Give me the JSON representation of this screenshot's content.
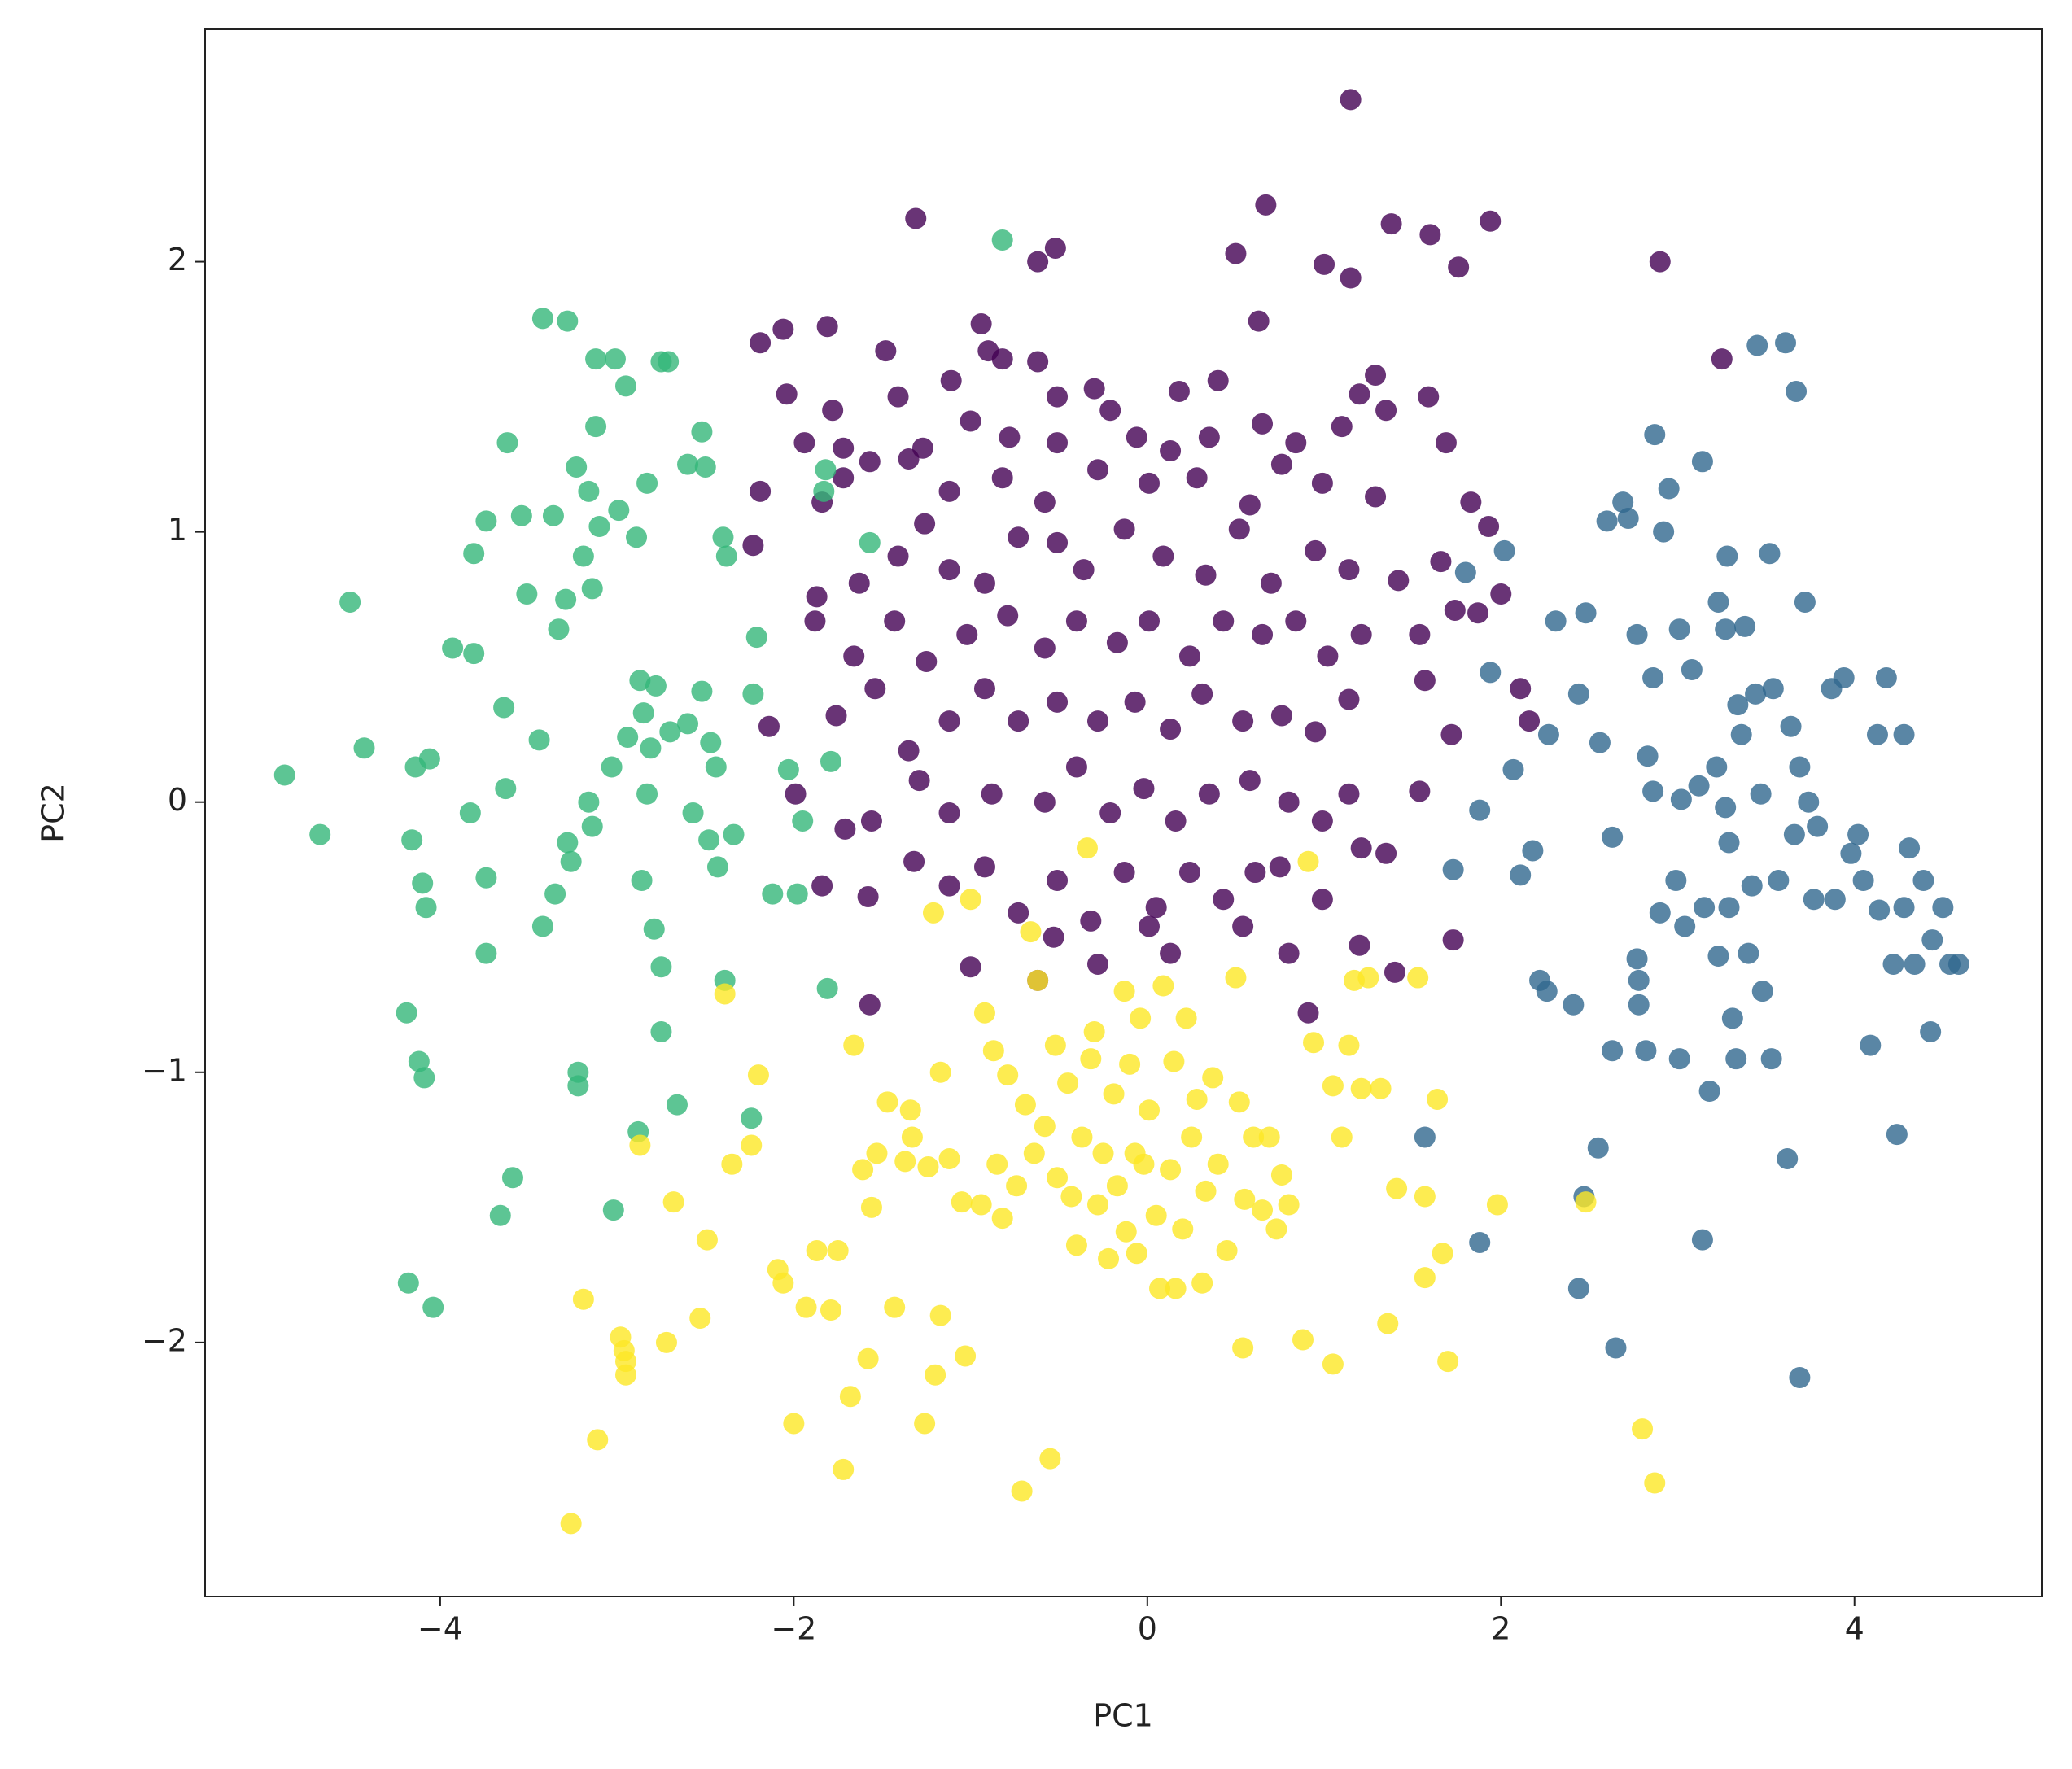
{
  "chart_data": {
    "type": "scatter",
    "xlabel": "PC1",
    "ylabel": "PC2",
    "xlim": [
      -5.33,
      5.06
    ],
    "ylim": [
      -2.94,
      2.86
    ],
    "xticks": [
      {
        "value": -4,
        "label": "−4"
      },
      {
        "value": -2,
        "label": "−2"
      },
      0,
      2,
      4
    ],
    "yticks": [
      {
        "value": -2,
        "label": "−2"
      },
      {
        "value": -1,
        "label": "−1"
      },
      0,
      1,
      2
    ],
    "grid": false,
    "opacity": 0.8,
    "series": [
      {
        "color": "#440154",
        "x": [
          1.15,
          -1.31,
          0.67,
          1.38,
          1.94,
          1.6,
          -0.62,
          -0.52,
          0.5,
          1.0,
          1.15,
          1.76,
          2.9,
          3.25,
          -2.19,
          -2.06,
          -1.81,
          -0.94,
          0.63,
          -1.48,
          -0.9,
          -0.82,
          -2.04,
          -1.78,
          -1.41,
          -1.11,
          -0.62,
          -0.51,
          -0.3,
          0.18,
          0.4,
          1.29,
          1.2,
          1.35,
          1.59,
          -1.94,
          -1.72,
          -1.57,
          -1.27,
          -1.0,
          -0.78,
          -0.51,
          -0.21,
          -0.06,
          0.13,
          0.35,
          0.65,
          0.84,
          1.1,
          1.69,
          -2.19,
          -1.84,
          -1.72,
          -1.35,
          -1.12,
          -0.82,
          -0.58,
          -0.28,
          0.01,
          0.28,
          0.58,
          0.76,
          0.99,
          1.29,
          1.83,
          -2.23,
          -1.87,
          -1.63,
          -1.41,
          -1.26,
          -1.12,
          -0.92,
          -0.73,
          -0.51,
          -0.36,
          -0.13,
          0.09,
          0.33,
          0.52,
          0.7,
          0.95,
          1.14,
          1.42,
          1.66,
          1.93,
          2.0,
          1.87,
          -1.88,
          -1.66,
          -1.43,
          -1.25,
          -1.02,
          -0.79,
          -0.58,
          -0.4,
          -0.17,
          0.01,
          0.24,
          0.43,
          0.65,
          0.84,
          1.02,
          1.21,
          1.54,
          1.74,
          -2.14,
          -1.76,
          -1.54,
          -1.35,
          -1.12,
          -0.92,
          -0.73,
          -0.51,
          -0.28,
          -0.07,
          0.13,
          0.31,
          0.54,
          0.76,
          0.95,
          1.14,
          1.57,
          1.72,
          2.11,
          2.16,
          -1.99,
          -1.71,
          -1.56,
          -1.29,
          -1.12,
          -0.88,
          -0.58,
          -0.4,
          -0.21,
          -0.02,
          0.16,
          0.35,
          0.58,
          0.8,
          0.99,
          1.14,
          1.54,
          -1.84,
          -1.58,
          -1.32,
          -1.12,
          -0.92,
          -0.73,
          -0.51,
          -0.32,
          -0.13,
          0.05,
          0.24,
          0.43,
          0.61,
          0.75,
          0.99,
          1.21,
          1.35,
          -1.57,
          -1.0,
          -0.53,
          -0.28,
          0.13,
          0.54,
          0.8,
          0.91,
          1.2,
          1.4,
          1.73,
          -0.62,
          0.01
        ],
        "y": [
          2.6,
          2.16,
          2.21,
          2.14,
          2.15,
          2.1,
          2.0,
          2.05,
          2.03,
          1.99,
          1.94,
          1.98,
          2.0,
          1.64,
          1.7,
          1.75,
          1.76,
          1.77,
          1.78,
          1.67,
          1.67,
          1.64,
          1.51,
          1.45,
          1.5,
          1.56,
          1.63,
          1.5,
          1.53,
          1.52,
          1.56,
          1.58,
          1.51,
          1.45,
          1.5,
          1.33,
          1.31,
          1.26,
          1.31,
          1.41,
          1.35,
          1.33,
          1.45,
          1.35,
          1.3,
          1.35,
          1.4,
          1.33,
          1.39,
          1.33,
          1.15,
          1.11,
          1.2,
          1.27,
          1.15,
          1.2,
          1.11,
          1.23,
          1.18,
          1.2,
          1.1,
          1.25,
          1.18,
          1.13,
          1.11,
          0.95,
          0.76,
          0.81,
          0.91,
          1.03,
          0.86,
          0.81,
          0.98,
          0.96,
          0.86,
          1.01,
          0.91,
          0.84,
          1.01,
          0.81,
          0.93,
          0.86,
          0.82,
          0.89,
          1.02,
          0.77,
          0.7,
          0.67,
          0.54,
          0.67,
          0.52,
          0.62,
          0.69,
          0.57,
          0.67,
          0.59,
          0.67,
          0.54,
          0.67,
          0.62,
          0.67,
          0.54,
          0.62,
          0.62,
          0.71,
          0.28,
          0.32,
          0.42,
          0.19,
          0.3,
          0.42,
          0.3,
          0.37,
          0.3,
          0.37,
          0.27,
          0.4,
          0.3,
          0.32,
          0.26,
          0.38,
          0.45,
          0.25,
          0.42,
          0.3,
          0.03,
          -0.1,
          -0.07,
          0.08,
          -0.04,
          0.03,
          0.0,
          0.13,
          -0.04,
          0.05,
          -0.07,
          0.03,
          0.08,
          0.0,
          -0.07,
          0.03,
          0.04,
          -0.31,
          -0.35,
          -0.22,
          -0.31,
          -0.24,
          -0.41,
          -0.29,
          -0.44,
          -0.26,
          -0.39,
          -0.26,
          -0.36,
          -0.26,
          -0.24,
          -0.36,
          -0.17,
          -0.19,
          -0.75,
          -0.61,
          -0.5,
          -0.6,
          -0.56,
          -0.46,
          -0.56,
          -0.78,
          -0.53,
          -0.63,
          -0.51,
          -0.66,
          -0.46
        ]
      },
      {
        "color": "#31688e",
        "x": [
          1.57,
          1.73,
          1.8,
          1.88,
          1.88,
          1.94,
          2.02,
          2.07,
          2.11,
          2.18,
          2.22,
          2.26,
          2.27,
          2.31,
          2.41,
          2.44,
          2.44,
          2.48,
          2.47,
          2.55,
          2.56,
          2.6,
          2.63,
          2.63,
          2.65,
          2.69,
          2.72,
          2.77,
          2.77,
          2.78,
          2.78,
          2.82,
          2.83,
          2.86,
          2.86,
          2.87,
          2.9,
          2.92,
          2.95,
          2.99,
          3.01,
          3.01,
          3.02,
          3.04,
          3.08,
          3.12,
          3.14,
          3.15,
          3.18,
          3.14,
          3.22,
          3.23,
          3.23,
          3.27,
          3.27,
          3.28,
          3.29,
          3.29,
          3.31,
          3.33,
          3.34,
          3.36,
          3.38,
          3.4,
          3.42,
          3.44,
          3.45,
          3.47,
          3.48,
          3.52,
          3.53,
          3.54,
          3.57,
          3.61,
          3.62,
          3.64,
          3.66,
          3.67,
          3.69,
          3.69,
          3.72,
          3.74,
          3.77,
          3.79,
          3.87,
          3.89,
          3.94,
          3.98,
          4.02,
          4.05,
          4.09,
          4.13,
          4.14,
          4.18,
          4.22,
          4.24,
          4.28,
          4.28,
          4.31,
          4.34,
          4.39,
          4.43,
          4.44,
          4.5,
          4.54,
          4.59
        ],
        "y": [
          -1.24,
          -0.25,
          0.85,
          -1.63,
          -0.03,
          0.48,
          0.93,
          0.12,
          -0.27,
          -0.18,
          -0.66,
          -0.7,
          0.25,
          0.67,
          -0.75,
          -1.8,
          0.4,
          0.7,
          -1.46,
          -1.28,
          0.22,
          1.04,
          -0.13,
          -0.92,
          -2.02,
          1.11,
          1.05,
          0.62,
          -0.58,
          -0.66,
          -0.75,
          -0.92,
          0.17,
          0.04,
          0.46,
          1.36,
          -0.41,
          1.0,
          1.16,
          -0.29,
          -0.95,
          0.64,
          0.01,
          -0.46,
          0.49,
          0.06,
          1.26,
          -0.39,
          -1.07,
          -1.62,
          0.13,
          0.74,
          -0.57,
          -0.02,
          0.64,
          0.91,
          -0.15,
          -0.39,
          -0.8,
          -0.95,
          0.36,
          0.25,
          0.65,
          -0.56,
          -0.31,
          0.4,
          1.69,
          0.03,
          -0.7,
          0.92,
          -0.95,
          0.42,
          -0.29,
          1.7,
          -1.32,
          0.28,
          -0.12,
          1.52,
          -2.13,
          0.13,
          0.74,
          0.0,
          -0.36,
          -0.09,
          0.42,
          -0.36,
          0.46,
          -0.19,
          -0.12,
          -0.29,
          -0.9,
          0.25,
          -0.4,
          0.46,
          -0.6,
          -1.23,
          0.25,
          -0.39,
          -0.17,
          -0.6,
          -0.29,
          -0.85,
          -0.51,
          -0.39,
          -0.6,
          -0.6
        ]
      },
      {
        "color": "#35b779",
        "x": [
          -4.88,
          -4.68,
          -4.51,
          -4.43,
          -4.19,
          -4.16,
          -4.14,
          -4.06,
          -4.1,
          -4.08,
          -4.12,
          -4.09,
          -4.18,
          -4.04,
          -3.93,
          -3.81,
          -3.81,
          -3.83,
          -3.74,
          -3.74,
          -3.74,
          -3.66,
          -3.59,
          -3.64,
          -3.63,
          -3.62,
          -3.54,
          -3.51,
          -3.44,
          -3.42,
          -3.42,
          -3.36,
          -3.35,
          -3.33,
          -3.29,
          -3.28,
          -3.28,
          -3.26,
          -3.23,
          -3.22,
          -3.22,
          -3.19,
          -3.16,
          -3.14,
          -3.12,
          -3.12,
          -3.16,
          -3.14,
          -3.1,
          -3.03,
          -3.02,
          -3.01,
          -2.99,
          -2.95,
          -2.94,
          -2.89,
          -2.88,
          -2.87,
          -2.86,
          -2.85,
          -2.83,
          -2.83,
          -2.81,
          -2.79,
          -2.78,
          -2.75,
          -2.75,
          -2.75,
          -2.71,
          -2.7,
          -2.66,
          -2.6,
          -2.6,
          -2.57,
          -2.52,
          -2.52,
          -2.5,
          -2.48,
          -2.47,
          -2.44,
          -2.43,
          -2.4,
          -2.39,
          -2.38,
          -2.34,
          -2.24,
          -2.23,
          -2.21,
          -2.12,
          -2.03,
          -1.98,
          -1.95,
          -1.82,
          -1.81,
          -1.79,
          -1.57,
          -0.82,
          -1.83
        ],
        "y": [
          0.1,
          -0.12,
          0.74,
          0.2,
          -0.78,
          -0.14,
          0.13,
          0.16,
          -0.3,
          -0.39,
          -0.96,
          -1.02,
          -1.78,
          -1.87,
          0.57,
          0.55,
          0.92,
          -0.04,
          1.04,
          -0.28,
          -0.56,
          -1.53,
          -1.39,
          0.35,
          0.05,
          1.33,
          1.06,
          0.77,
          0.23,
          -0.46,
          1.79,
          1.06,
          -0.34,
          0.64,
          0.75,
          1.78,
          -0.15,
          -0.22,
          1.24,
          -1.0,
          -1.05,
          0.91,
          1.15,
          0.79,
          1.64,
          1.39,
          0.0,
          -0.09,
          1.02,
          0.13,
          -1.51,
          1.64,
          1.08,
          1.54,
          0.24,
          0.98,
          -1.22,
          0.45,
          -0.29,
          0.33,
          1.18,
          0.03,
          0.2,
          -0.47,
          0.43,
          1.63,
          -0.61,
          -0.85,
          1.63,
          0.26,
          -1.12,
          0.29,
          1.25,
          -0.04,
          0.41,
          1.37,
          1.24,
          -0.14,
          0.22,
          0.13,
          -0.24,
          0.98,
          -0.66,
          0.91,
          -0.12,
          -1.17,
          0.4,
          0.61,
          -0.34,
          0.12,
          -0.34,
          -0.07,
          1.23,
          -0.69,
          0.15,
          0.96,
          2.08,
          1.15
        ]
      },
      {
        "color": "#fde725",
        "x": [
          -3.26,
          -3.19,
          -3.11,
          -2.98,
          -2.96,
          -2.95,
          -2.95,
          -2.87,
          -2.72,
          -2.68,
          -2.53,
          -2.49,
          -2.39,
          -2.35,
          -2.24,
          -2.2,
          -2.09,
          -2.06,
          -2.0,
          -1.93,
          -1.87,
          -1.79,
          -1.75,
          -1.68,
          -1.72,
          -1.66,
          -1.61,
          -1.58,
          -1.56,
          -1.53,
          -1.47,
          -1.43,
          -1.34,
          -1.37,
          -1.33,
          -1.26,
          -1.24,
          -1.21,
          -1.2,
          -1.17,
          -1.17,
          -1.12,
          -1.05,
          -1.03,
          -1.0,
          -0.94,
          -0.92,
          -0.87,
          -0.85,
          -0.82,
          -0.79,
          -0.74,
          -0.71,
          -0.69,
          -0.66,
          -0.64,
          -0.62,
          -0.58,
          -0.55,
          -0.52,
          -0.51,
          -0.45,
          -0.43,
          -0.4,
          -0.37,
          -0.34,
          -0.32,
          -0.3,
          -0.28,
          -0.25,
          -0.22,
          -0.19,
          -0.17,
          -0.13,
          -0.12,
          -0.1,
          -0.07,
          -0.06,
          -0.04,
          -0.02,
          0.01,
          0.05,
          0.07,
          0.09,
          0.13,
          0.15,
          0.16,
          0.2,
          0.22,
          0.25,
          0.28,
          0.31,
          0.33,
          0.37,
          0.4,
          0.45,
          0.5,
          0.52,
          0.54,
          0.55,
          0.6,
          0.65,
          0.69,
          0.73,
          0.76,
          0.8,
          0.88,
          0.91,
          0.94,
          1.05,
          1.05,
          1.1,
          1.14,
          1.17,
          1.25,
          1.21,
          1.32,
          1.36,
          1.41,
          1.53,
          1.57,
          1.57,
          1.64,
          1.67,
          1.7,
          1.98,
          2.48,
          2.8,
          2.87
        ],
        "y": [
          -2.67,
          -1.84,
          -2.36,
          -1.98,
          -2.03,
          -2.07,
          -2.12,
          -1.27,
          -2.0,
          -1.48,
          -1.91,
          -1.62,
          -0.71,
          -1.34,
          -1.27,
          -1.01,
          -1.73,
          -1.78,
          -2.3,
          -1.87,
          -1.66,
          -1.88,
          -1.66,
          -2.2,
          -2.47,
          -0.9,
          -1.36,
          -2.06,
          -1.5,
          -1.3,
          -1.11,
          -1.87,
          -1.14,
          -1.33,
          -1.24,
          -2.3,
          -1.35,
          -0.41,
          -2.12,
          -1.9,
          -1.0,
          -1.32,
          -1.48,
          -2.05,
          -0.36,
          -1.49,
          -0.78,
          -0.92,
          -1.34,
          -1.54,
          -1.01,
          -1.42,
          -2.55,
          -1.12,
          -0.48,
          -1.3,
          -0.66,
          -1.2,
          -2.43,
          -0.9,
          -1.39,
          -1.04,
          -1.46,
          -1.64,
          -1.24,
          -0.17,
          -0.95,
          -0.85,
          -1.49,
          -1.3,
          -1.69,
          -1.08,
          -1.42,
          -0.7,
          -1.59,
          -0.97,
          -1.3,
          -1.67,
          -0.8,
          -1.34,
          -1.14,
          -1.53,
          -1.8,
          -0.68,
          -1.36,
          -0.96,
          -1.8,
          -1.58,
          -0.8,
          -1.24,
          -1.1,
          -1.78,
          -1.44,
          -1.02,
          -1.34,
          -1.66,
          -0.65,
          -1.11,
          -2.02,
          -1.47,
          -1.24,
          -1.51,
          -1.24,
          -1.58,
          -1.38,
          -1.49,
          -1.99,
          -0.22,
          -0.89,
          -1.05,
          -2.08,
          -1.24,
          -0.9,
          -0.66,
          -0.65,
          -1.06,
          -1.06,
          -1.93,
          -1.43,
          -0.65,
          -1.46,
          -1.76,
          -1.1,
          -1.67,
          -2.07,
          -1.49,
          -1.48,
          -2.32,
          -2.52
        ]
      }
    ]
  }
}
